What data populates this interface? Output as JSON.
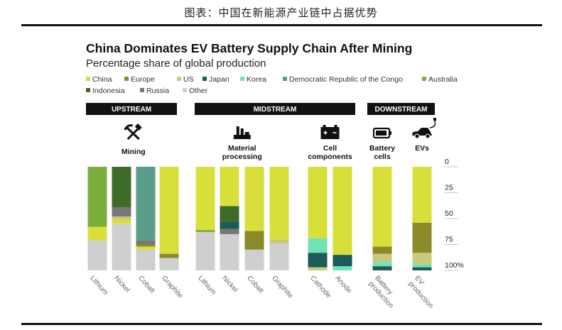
{
  "caption": "图表：中国在新能源产业链中占据优势",
  "chart_data": {
    "type": "bar",
    "stacked": true,
    "title": "China Dominates EV Battery Supply Chain After Mining",
    "subtitle": "Percentage share of global production",
    "ylim": [
      0,
      100
    ],
    "y_ticks": [
      "0",
      "25",
      "50",
      "75",
      "100%"
    ],
    "legend": [
      {
        "name": "China",
        "color": "#d8df3b"
      },
      {
        "name": "Europe",
        "color": "#8a8a28"
      },
      {
        "name": "US",
        "color": "#c9c97e"
      },
      {
        "name": "Japan",
        "color": "#1d5a5a"
      },
      {
        "name": "Korea",
        "color": "#6fe2b6"
      },
      {
        "name": "Democratic Republic of the Congo",
        "color": "#5a9e8a"
      },
      {
        "name": "Australia",
        "color": "#7aaf3c"
      },
      {
        "name": "Indonesia",
        "color": "#3f6b2a"
      },
      {
        "name": "Russia",
        "color": "#777777"
      },
      {
        "name": "Other",
        "color": "#cfcfcf"
      }
    ],
    "stages": [
      {
        "label": "UPSTREAM",
        "groups": [
          {
            "label": "Mining",
            "icon": "hammer-pick-icon",
            "categories": [
              {
                "name": "Lithium",
                "segments": [
                  [
                    "Other",
                    29
                  ],
                  [
                    "China",
                    13
                  ],
                  [
                    "Australia",
                    58
                  ]
                ]
              },
              {
                "name": "Nickel",
                "segments": [
                  [
                    "Other",
                    45
                  ],
                  [
                    "China",
                    4
                  ],
                  [
                    "US",
                    3
                  ],
                  [
                    "Russia",
                    9
                  ],
                  [
                    "Indonesia",
                    39
                  ]
                ]
              },
              {
                "name": "Cobalt",
                "segments": [
                  [
                    "Other",
                    20
                  ],
                  [
                    "China",
                    3
                  ],
                  [
                    "Europe",
                    2
                  ],
                  [
                    "Russia",
                    4
                  ],
                  [
                    "Democratic Republic of the Congo",
                    71
                  ]
                ]
              },
              {
                "name": "Graphite",
                "segments": [
                  [
                    "Other",
                    12
                  ],
                  [
                    "Europe",
                    4
                  ],
                  [
                    "China",
                    84
                  ]
                ]
              }
            ]
          }
        ]
      },
      {
        "label": "MIDSTREAM",
        "groups": [
          {
            "label": "Material processing",
            "icon": "factory-icon",
            "categories": [
              {
                "name": "Lithium",
                "segments": [
                  [
                    "Other",
                    37
                  ],
                  [
                    "Australia",
                    2
                  ],
                  [
                    "China",
                    61
                  ]
                ]
              },
              {
                "name": "Nickel",
                "segments": [
                  [
                    "Other",
                    35
                  ],
                  [
                    "Russia",
                    5
                  ],
                  [
                    "Japan",
                    7
                  ],
                  [
                    "Indonesia",
                    15
                  ],
                  [
                    "China",
                    38
                  ]
                ]
              },
              {
                "name": "Cobalt",
                "segments": [
                  [
                    "Other",
                    20
                  ],
                  [
                    "Europe",
                    18
                  ],
                  [
                    "China",
                    62
                  ]
                ]
              },
              {
                "name": "Graphite",
                "segments": [
                  [
                    "Other",
                    26
                  ],
                  [
                    "US",
                    4
                  ],
                  [
                    "China",
                    70
                  ]
                ]
              }
            ]
          },
          {
            "label": "Cell components",
            "icon": "battery-cell-icon",
            "categories": [
              {
                "name": "Cathode",
                "segments": [
                  [
                    "US",
                    3
                  ],
                  [
                    "Japan",
                    14
                  ],
                  [
                    "Korea",
                    14
                  ],
                  [
                    "China",
                    69
                  ]
                ]
              },
              {
                "name": "Anode",
                "segments": [
                  [
                    "Korea",
                    4
                  ],
                  [
                    "Japan",
                    11
                  ],
                  [
                    "China",
                    85
                  ]
                ]
              }
            ]
          }
        ]
      },
      {
        "label": "DOWNSTREAM",
        "groups": [
          {
            "label": "Battery cells",
            "icon": "battery-icon",
            "categories": [
              {
                "name": "Battery production",
                "segments": [
                  [
                    "Japan",
                    4
                  ],
                  [
                    "Korea",
                    4
                  ],
                  [
                    "US",
                    8
                  ],
                  [
                    "Europe",
                    7
                  ],
                  [
                    "China",
                    77
                  ]
                ]
              }
            ]
          },
          {
            "label": "EVs",
            "icon": "electric-car-icon",
            "categories": [
              {
                "name": "EV production",
                "segments": [
                  [
                    "Japan",
                    3
                  ],
                  [
                    "Korea",
                    3
                  ],
                  [
                    "US",
                    11
                  ],
                  [
                    "Europe",
                    29
                  ],
                  [
                    "China",
                    54
                  ]
                ]
              }
            ]
          }
        ]
      }
    ]
  }
}
